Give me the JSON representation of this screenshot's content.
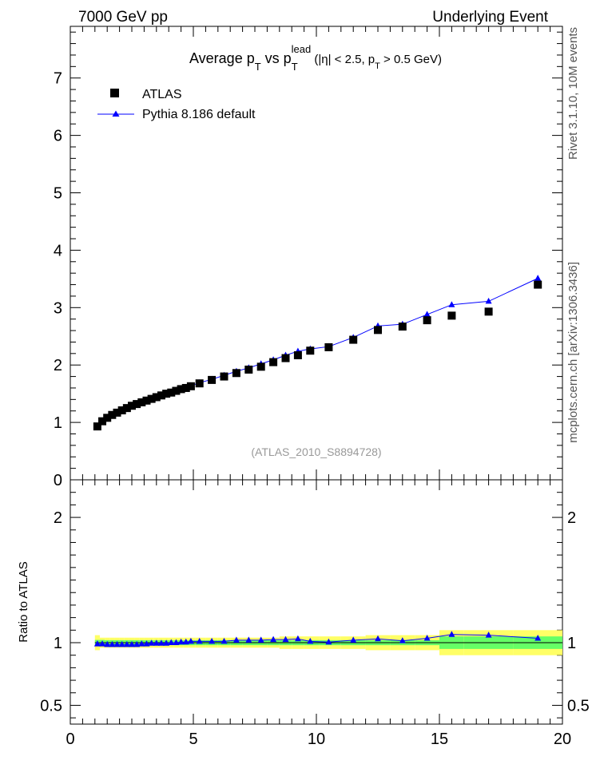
{
  "header": {
    "left": "7000 GeV pp",
    "right": "Underlying Event"
  },
  "side_labels": {
    "rivet": "Rivet 3.1.10, 10M events",
    "mcplots": "mcplots.cern.ch [arXiv:1306.3436]"
  },
  "chart_data": {
    "type": "scatter",
    "title": {
      "main": "Average p",
      "sub1": "T",
      "mid": " vs p",
      "sub2": "T",
      "sup2": "lead",
      "rest": " (|η| < 2.5, p",
      "sub3": "T",
      "end": " > 0.5 GeV)"
    },
    "watermark": "(ATLAS_2010_S8894728)",
    "xlim": [
      0,
      20
    ],
    "ylim": [
      0,
      7.9
    ],
    "ratio_ylim": [
      0.35,
      2.3
    ],
    "ratio_ylabel": "Ratio to ATLAS",
    "x_ticks": [
      "0",
      "5",
      "10",
      "15",
      "20"
    ],
    "y_ticks": [
      "0",
      "1",
      "2",
      "3",
      "4",
      "5",
      "6",
      "7"
    ],
    "ratio_ticks": [
      "0.5",
      "1",
      "2"
    ],
    "legend": {
      "data_label": "ATLAS",
      "mc_label": "Pythia 8.186 default",
      "placement": "top-left"
    },
    "colors": {
      "data": "#000000",
      "mc": "#0000ff",
      "band_inner": "#66ff66",
      "band_outer": "#ffff66"
    },
    "series": [
      {
        "name": "ATLAS",
        "x": [
          1.1,
          1.3,
          1.5,
          1.7,
          1.9,
          2.1,
          2.3,
          2.5,
          2.7,
          2.9,
          3.1,
          3.3,
          3.5,
          3.7,
          3.9,
          4.1,
          4.3,
          4.5,
          4.7,
          4.9,
          5.25,
          5.75,
          6.25,
          6.75,
          7.25,
          7.75,
          8.25,
          8.75,
          9.25,
          9.75,
          10.5,
          11.5,
          12.5,
          13.5,
          14.5,
          15.5,
          17.0,
          19.0
        ],
        "y": [
          0.93,
          1.02,
          1.08,
          1.13,
          1.17,
          1.21,
          1.25,
          1.29,
          1.32,
          1.35,
          1.38,
          1.41,
          1.44,
          1.47,
          1.5,
          1.52,
          1.55,
          1.58,
          1.6,
          1.63,
          1.68,
          1.74,
          1.8,
          1.86,
          1.92,
          1.97,
          2.05,
          2.12,
          2.17,
          2.25,
          2.31,
          2.44,
          2.61,
          2.67,
          2.78,
          2.86,
          2.93,
          3.4
        ],
        "ratio_band_inner": [
          0.022,
          0.022,
          0.02,
          0.02,
          0.02,
          0.02,
          0.02,
          0.02,
          0.02,
          0.02,
          0.02,
          0.02,
          0.02,
          0.02,
          0.02,
          0.02,
          0.02,
          0.02,
          0.02,
          0.02,
          0.02,
          0.02,
          0.02,
          0.02,
          0.02,
          0.02,
          0.02,
          0.02,
          0.02,
          0.02,
          0.02,
          0.02,
          0.02,
          0.02,
          0.02,
          0.05,
          0.05,
          0.05
        ],
        "ratio_band_outer": [
          0.06,
          0.04,
          0.04,
          0.04,
          0.04,
          0.04,
          0.04,
          0.04,
          0.04,
          0.04,
          0.04,
          0.04,
          0.04,
          0.04,
          0.04,
          0.04,
          0.04,
          0.04,
          0.04,
          0.04,
          0.04,
          0.04,
          0.04,
          0.04,
          0.04,
          0.04,
          0.04,
          0.05,
          0.05,
          0.05,
          0.05,
          0.05,
          0.06,
          0.06,
          0.06,
          0.1,
          0.1,
          0.1
        ]
      },
      {
        "name": "Pythia 8.186 default",
        "x": [
          1.1,
          1.3,
          1.5,
          1.7,
          1.9,
          2.1,
          2.3,
          2.5,
          2.7,
          2.9,
          3.1,
          3.3,
          3.5,
          3.7,
          3.9,
          4.1,
          4.3,
          4.5,
          4.7,
          4.9,
          5.25,
          5.75,
          6.25,
          6.75,
          7.25,
          7.75,
          8.25,
          8.75,
          9.25,
          9.75,
          10.5,
          11.5,
          12.5,
          13.5,
          14.5,
          15.5,
          17.0,
          19.0
        ],
        "y": [
          0.92,
          1.01,
          1.06,
          1.11,
          1.15,
          1.19,
          1.23,
          1.27,
          1.3,
          1.34,
          1.37,
          1.4,
          1.43,
          1.46,
          1.49,
          1.52,
          1.55,
          1.58,
          1.61,
          1.64,
          1.69,
          1.75,
          1.82,
          1.89,
          1.95,
          2.02,
          2.09,
          2.17,
          2.24,
          2.28,
          2.32,
          2.48,
          2.68,
          2.71,
          2.88,
          3.05,
          3.11,
          3.51
        ],
        "ratio": [
          0.99,
          0.99,
          0.985,
          0.985,
          0.985,
          0.985,
          0.985,
          0.985,
          0.985,
          0.99,
          0.99,
          0.995,
          0.995,
          0.995,
          0.995,
          1.0,
          1.0,
          1.005,
          1.005,
          1.01,
          1.01,
          1.01,
          1.01,
          1.02,
          1.02,
          1.02,
          1.025,
          1.025,
          1.03,
          1.01,
          1.005,
          1.02,
          1.03,
          1.015,
          1.035,
          1.065,
          1.06,
          1.035
        ]
      }
    ]
  }
}
